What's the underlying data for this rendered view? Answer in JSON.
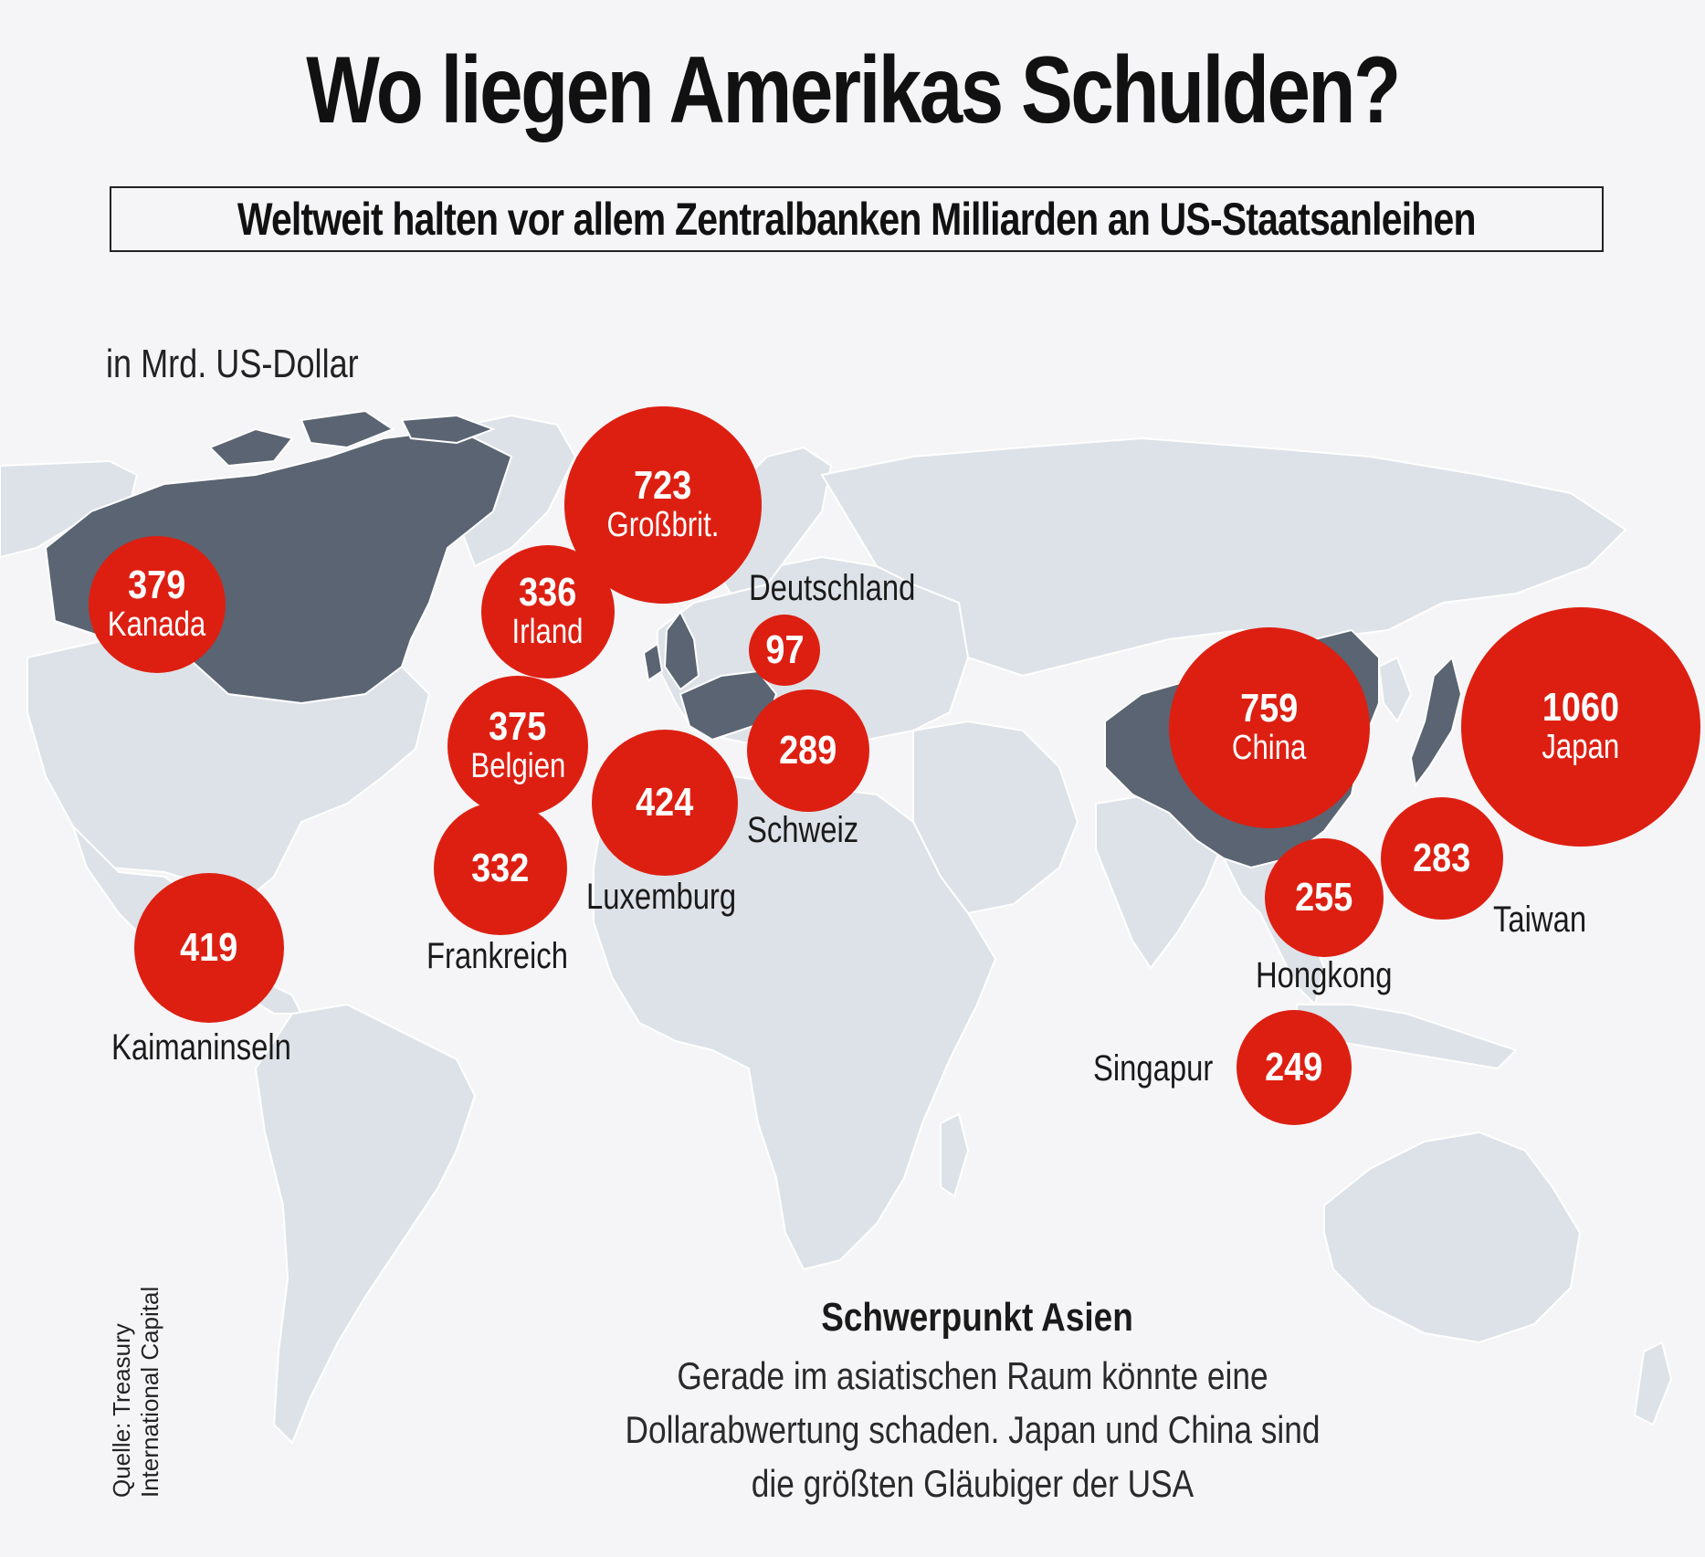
{
  "header": {
    "title": "Wo liegen Amerikas Schulden?",
    "subtitle": "Weltweit halten vor allem Zentralbanken Milliarden an US-Staatsanleihen",
    "unit": "in Mrd. US-Dollar"
  },
  "colors": {
    "bubble": "#dd1f12",
    "land": "#dde2e8",
    "land_highlight": "#5a6472",
    "background": "#f5f5f7"
  },
  "holders": [
    {
      "id": "kanada",
      "value": "379",
      "name": "Kanada"
    },
    {
      "id": "grossbritannien",
      "value": "723",
      "name": "Großbrit."
    },
    {
      "id": "irland",
      "value": "336",
      "name": "Irland"
    },
    {
      "id": "deutschland",
      "value": "97",
      "name": "Deutschland"
    },
    {
      "id": "belgien",
      "value": "375",
      "name": "Belgien"
    },
    {
      "id": "schweiz",
      "value": "289",
      "name": "Schweiz"
    },
    {
      "id": "luxemburg",
      "value": "424",
      "name": "Luxemburg"
    },
    {
      "id": "frankreich",
      "value": "332",
      "name": "Frankreich"
    },
    {
      "id": "kaimaninseln",
      "value": "419",
      "name": "Kaimaninseln"
    },
    {
      "id": "china",
      "value": "759",
      "name": "China"
    },
    {
      "id": "japan",
      "value": "1060",
      "name": "Japan"
    },
    {
      "id": "taiwan",
      "value": "283",
      "name": "Taiwan"
    },
    {
      "id": "hongkong",
      "value": "255",
      "name": "Hongkong"
    },
    {
      "id": "singapur",
      "value": "249",
      "name": "Singapur"
    }
  ],
  "note": {
    "heading": "Schwerpunkt Asien",
    "line1": "Gerade im asiatischen Raum könnte eine",
    "line2": "Dollarabwertung schaden. Japan und China sind",
    "line3": "die größten Gläubiger der USA"
  },
  "source": {
    "line1": "Quelle: Treasury",
    "line2": "International Capital"
  }
}
